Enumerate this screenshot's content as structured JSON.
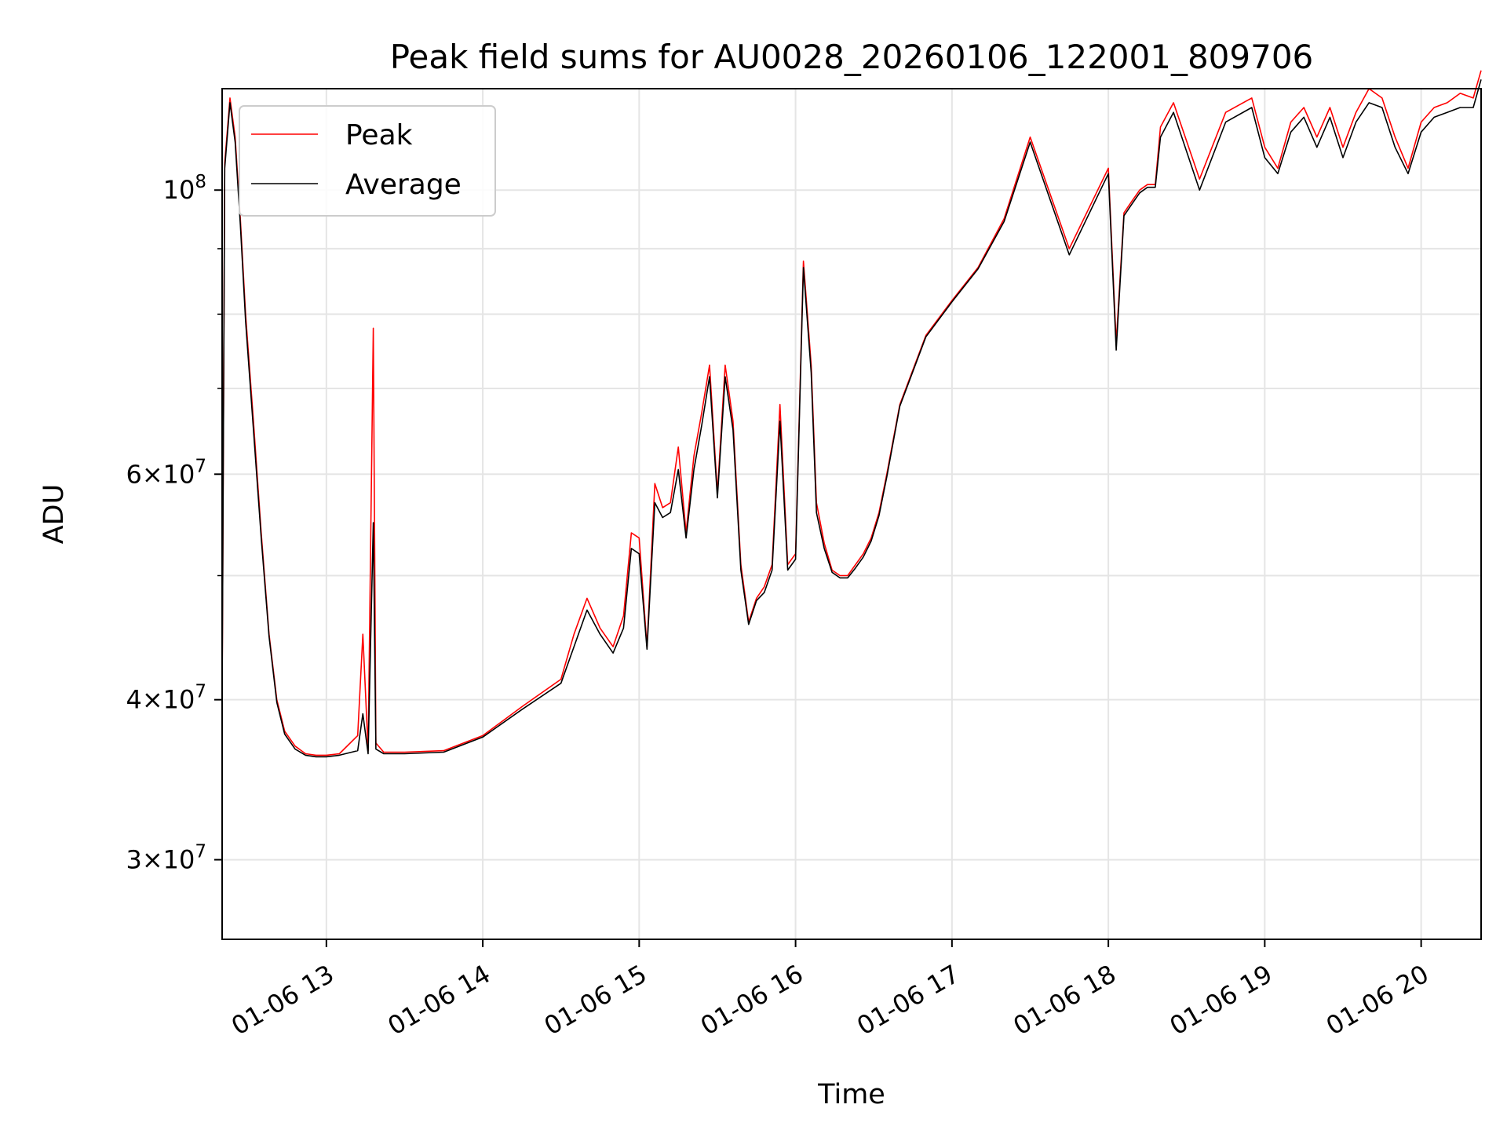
{
  "chart_data": {
    "type": "line",
    "title": "Peak field sums for AU0028_20260106_122001_809706",
    "xlabel": "Time",
    "ylabel": "ADU",
    "y_scale": "log",
    "ylim": [
      26000000,
      120000000
    ],
    "x_range": [
      "01-06 12:20",
      "01-06 20:23"
    ],
    "grid": true,
    "legend_position": "top-left",
    "x_ticks": [
      "01-06 13",
      "01-06 14",
      "01-06 15",
      "01-06 16",
      "01-06 17",
      "01-06 18",
      "01-06 19",
      "01-06 20"
    ],
    "x_tick_hours": [
      13,
      14,
      15,
      16,
      17,
      18,
      19,
      20
    ],
    "y_ticks": [
      {
        "value": 30000000,
        "mantissa": "3",
        "base": "10",
        "exp": "7"
      },
      {
        "value": 40000000,
        "mantissa": "4",
        "base": "10",
        "exp": "7"
      },
      {
        "value": 60000000,
        "mantissa": "6",
        "base": "10",
        "exp": "7"
      },
      {
        "value": 100000000,
        "mantissa": "",
        "base": "10",
        "exp": "8"
      }
    ],
    "y_minor_ticks": [
      50000000,
      70000000,
      80000000,
      90000000
    ],
    "series": [
      {
        "name": "Peak",
        "color": "#ff0000",
        "x": [
          "01-06 12:20",
          "01-06 12:21",
          "01-06 12:23",
          "01-06 12:25",
          "01-06 12:27",
          "01-06 12:29",
          "01-06 12:32",
          "01-06 12:35",
          "01-06 12:38",
          "01-06 12:41",
          "01-06 12:44",
          "01-06 12:48",
          "01-06 12:52",
          "01-06 12:56",
          "01-06 13:00",
          "01-06 13:05",
          "01-06 13:12",
          "01-06 13:14",
          "01-06 13:16",
          "01-06 13:18",
          "01-06 13:19",
          "01-06 13:22",
          "01-06 13:30",
          "01-06 13:45",
          "01-06 14:00",
          "01-06 14:15",
          "01-06 14:30",
          "01-06 14:35",
          "01-06 14:40",
          "01-06 14:45",
          "01-06 14:50",
          "01-06 14:54",
          "01-06 14:57",
          "01-06 15:00",
          "01-06 15:03",
          "01-06 15:06",
          "01-06 15:09",
          "01-06 15:12",
          "01-06 15:15",
          "01-06 15:18",
          "01-06 15:21",
          "01-06 15:24",
          "01-06 15:27",
          "01-06 15:30",
          "01-06 15:33",
          "01-06 15:36",
          "01-06 15:39",
          "01-06 15:42",
          "01-06 15:45",
          "01-06 15:48",
          "01-06 15:51",
          "01-06 15:54",
          "01-06 15:57",
          "01-06 16:00",
          "01-06 16:03",
          "01-06 16:06",
          "01-06 16:08",
          "01-06 16:11",
          "01-06 16:14",
          "01-06 16:17",
          "01-06 16:20",
          "01-06 16:23",
          "01-06 16:26",
          "01-06 16:29",
          "01-06 16:32",
          "01-06 16:35",
          "01-06 16:40",
          "01-06 16:50",
          "01-06 17:00",
          "01-06 17:10",
          "01-06 17:20",
          "01-06 17:30",
          "01-06 17:45",
          "01-06 18:00",
          "01-06 18:03",
          "01-06 18:06",
          "01-06 18:09",
          "01-06 18:12",
          "01-06 18:15",
          "01-06 18:18",
          "01-06 18:20",
          "01-06 18:25",
          "01-06 18:35",
          "01-06 18:45",
          "01-06 18:55",
          "01-06 19:00",
          "01-06 19:05",
          "01-06 19:10",
          "01-06 19:15",
          "01-06 19:20",
          "01-06 19:25",
          "01-06 19:30",
          "01-06 19:35",
          "01-06 19:40",
          "01-06 19:45",
          "01-06 19:50",
          "01-06 19:55",
          "01-06 20:00",
          "01-06 20:05",
          "01-06 20:10",
          "01-06 20:15",
          "01-06 20:20",
          "01-06 20:23"
        ],
        "values": [
          40000000,
          105000000,
          118000000,
          110000000,
          95000000,
          80000000,
          66000000,
          54000000,
          45000000,
          40000000,
          37800000,
          36800000,
          36300000,
          36200000,
          36200000,
          36300000,
          37500000,
          45000000,
          36500000,
          78000000,
          37000000,
          36400000,
          36400000,
          36500000,
          37500000,
          39500000,
          41500000,
          45000000,
          48000000,
          45500000,
          44000000,
          46500000,
          54000000,
          53500000,
          44000000,
          59000000,
          56500000,
          57000000,
          63000000,
          54000000,
          62000000,
          67000000,
          73000000,
          58000000,
          73000000,
          66000000,
          51000000,
          46000000,
          48000000,
          49000000,
          51000000,
          68000000,
          51000000,
          52000000,
          88000000,
          73000000,
          57000000,
          53000000,
          50500000,
          50000000,
          50000000,
          51000000,
          52000000,
          53500000,
          56000000,
          60000000,
          68000000,
          77000000,
          82000000,
          87000000,
          95000000,
          110000000,
          90000000,
          104000000,
          76000000,
          96000000,
          98000000,
          100000000,
          101000000,
          101000000,
          112000000,
          117000000,
          102000000,
          115000000,
          118000000,
          108000000,
          104000000,
          113000000,
          116000000,
          110000000,
          116000000,
          108000000,
          115000000,
          120000000,
          118000000,
          110000000,
          104000000,
          113000000,
          116000000,
          117000000,
          119000000,
          118000000,
          124000000
        ]
      },
      {
        "name": "Average",
        "color": "#000000",
        "x": [
          "01-06 12:20",
          "01-06 12:21",
          "01-06 12:23",
          "01-06 12:25",
          "01-06 12:27",
          "01-06 12:29",
          "01-06 12:32",
          "01-06 12:35",
          "01-06 12:38",
          "01-06 12:41",
          "01-06 12:44",
          "01-06 12:48",
          "01-06 12:52",
          "01-06 12:56",
          "01-06 13:00",
          "01-06 13:05",
          "01-06 13:12",
          "01-06 13:14",
          "01-06 13:16",
          "01-06 13:18",
          "01-06 13:19",
          "01-06 13:22",
          "01-06 13:30",
          "01-06 13:45",
          "01-06 14:00",
          "01-06 14:15",
          "01-06 14:30",
          "01-06 14:35",
          "01-06 14:40",
          "01-06 14:45",
          "01-06 14:50",
          "01-06 14:54",
          "01-06 14:57",
          "01-06 15:00",
          "01-06 15:03",
          "01-06 15:06",
          "01-06 15:09",
          "01-06 15:12",
          "01-06 15:15",
          "01-06 15:18",
          "01-06 15:21",
          "01-06 15:24",
          "01-06 15:27",
          "01-06 15:30",
          "01-06 15:33",
          "01-06 15:36",
          "01-06 15:39",
          "01-06 15:42",
          "01-06 15:45",
          "01-06 15:48",
          "01-06 15:51",
          "01-06 15:54",
          "01-06 15:57",
          "01-06 16:00",
          "01-06 16:03",
          "01-06 16:06",
          "01-06 16:08",
          "01-06 16:11",
          "01-06 16:14",
          "01-06 16:17",
          "01-06 16:20",
          "01-06 16:23",
          "01-06 16:26",
          "01-06 16:29",
          "01-06 16:32",
          "01-06 16:35",
          "01-06 16:40",
          "01-06 16:50",
          "01-06 17:00",
          "01-06 17:10",
          "01-06 17:20",
          "01-06 17:30",
          "01-06 17:45",
          "01-06 18:00",
          "01-06 18:03",
          "01-06 18:06",
          "01-06 18:09",
          "01-06 18:12",
          "01-06 18:15",
          "01-06 18:18",
          "01-06 18:20",
          "01-06 18:25",
          "01-06 18:35",
          "01-06 18:45",
          "01-06 18:55",
          "01-06 19:00",
          "01-06 19:05",
          "01-06 19:10",
          "01-06 19:15",
          "01-06 19:20",
          "01-06 19:25",
          "01-06 19:30",
          "01-06 19:35",
          "01-06 19:40",
          "01-06 19:45",
          "01-06 19:50",
          "01-06 19:55",
          "01-06 20:00",
          "01-06 20:05",
          "01-06 20:10",
          "01-06 20:15",
          "01-06 20:20",
          "01-06 20:23"
        ],
        "values": [
          40000000,
          104000000,
          117000000,
          109000000,
          94000000,
          79000000,
          65000000,
          53500000,
          44800000,
          39800000,
          37600000,
          36600000,
          36200000,
          36100000,
          36100000,
          36200000,
          36500000,
          39000000,
          36300000,
          55000000,
          36600000,
          36300000,
          36300000,
          36400000,
          37400000,
          39300000,
          41200000,
          44000000,
          47000000,
          45000000,
          43500000,
          45500000,
          52500000,
          52000000,
          43800000,
          57000000,
          55500000,
          56000000,
          60500000,
          53500000,
          60500000,
          65500000,
          71500000,
          57500000,
          71500000,
          65000000,
          50500000,
          45800000,
          47800000,
          48500000,
          50500000,
          66000000,
          50500000,
          51500000,
          87000000,
          72000000,
          56000000,
          52500000,
          50300000,
          49800000,
          49800000,
          50700000,
          51700000,
          53200000,
          55700000,
          59700000,
          67800000,
          76800000,
          81800000,
          86800000,
          94500000,
          109000000,
          89000000,
          103000000,
          75000000,
          95500000,
          97500000,
          99500000,
          100500000,
          100500000,
          110000000,
          115000000,
          100000000,
          113000000,
          116000000,
          106000000,
          103000000,
          111000000,
          114000000,
          108000000,
          114000000,
          106000000,
          113000000,
          117000000,
          116000000,
          108000000,
          103000000,
          111000000,
          114000000,
          115000000,
          116000000,
          116000000,
          122000000
        ]
      }
    ]
  }
}
